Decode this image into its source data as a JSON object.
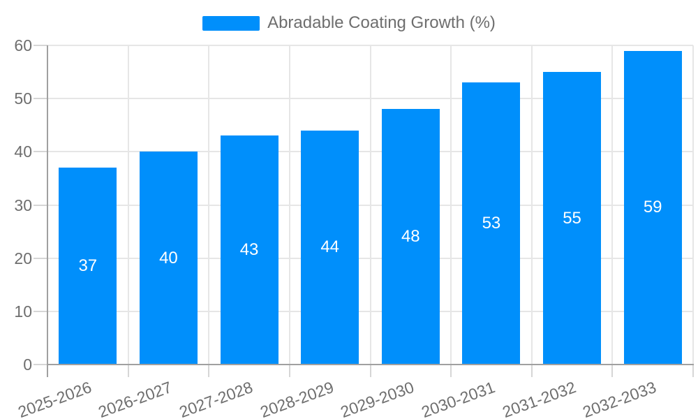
{
  "chart_data": {
    "type": "bar",
    "title": "Abradable Coating Growth (%)",
    "categories": [
      "2025-2026",
      "2026-2027",
      "2027-2028",
      "2028-2029",
      "2029-2030",
      "2030-2031",
      "2031-2032",
      "2032-2033"
    ],
    "values": [
      37,
      40,
      43,
      44,
      48,
      53,
      55,
      59
    ],
    "xlabel": "",
    "ylabel": "",
    "ylim": [
      0,
      60
    ],
    "yticks": [
      0,
      10,
      20,
      30,
      40,
      50,
      60
    ],
    "grid": true,
    "legend_position": "top",
    "value_label_position": "inside-center"
  },
  "legend": {
    "label": "Abradable Coating Growth (%)"
  },
  "colors": {
    "bar": "#008FFB",
    "value_label": "#FFFFFF",
    "grid_line": "#E6E6E6",
    "axis_line": "#A0A0A0",
    "tick": "#D6D6D6",
    "label_text": "#6E6E6E",
    "background": "#FFFFFF"
  }
}
